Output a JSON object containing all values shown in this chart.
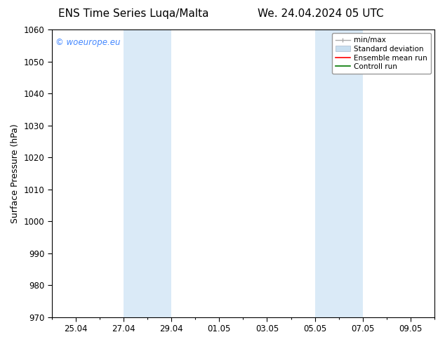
{
  "title_left": "ENS Time Series Luqa/Malta",
  "title_right": "We. 24.04.2024 05 UTC",
  "ylabel": "Surface Pressure (hPa)",
  "ylim": [
    970,
    1060
  ],
  "yticks": [
    970,
    980,
    990,
    1000,
    1010,
    1020,
    1030,
    1040,
    1050,
    1060
  ],
  "xlim": [
    0,
    16
  ],
  "xtick_labels": [
    "25.04",
    "27.04",
    "29.04",
    "01.05",
    "03.05",
    "05.05",
    "07.05",
    "09.05"
  ],
  "xtick_positions": [
    1,
    3,
    5,
    7,
    9,
    11,
    13,
    15
  ],
  "background_color": "#ffffff",
  "plot_bg_color": "#ffffff",
  "shaded_regions": [
    {
      "x_start": 3,
      "x_end": 5,
      "color": "#daeaf7"
    },
    {
      "x_start": 11,
      "x_end": 13,
      "color": "#daeaf7"
    }
  ],
  "watermark_text": "© woeurope.eu",
  "watermark_color": "#4488ff",
  "legend_items": [
    {
      "label": "min/max",
      "color": "#aaaaaa",
      "lw": 1.0
    },
    {
      "label": "Standard deviation",
      "color": "#c8dff0",
      "lw": 8
    },
    {
      "label": "Ensemble mean run",
      "color": "#ff0000",
      "lw": 1.2
    },
    {
      "label": "Controll run",
      "color": "#007700",
      "lw": 1.2
    }
  ],
  "title_fontsize": 11,
  "axis_fontsize": 9,
  "tick_fontsize": 8.5,
  "legend_fontsize": 7.5
}
